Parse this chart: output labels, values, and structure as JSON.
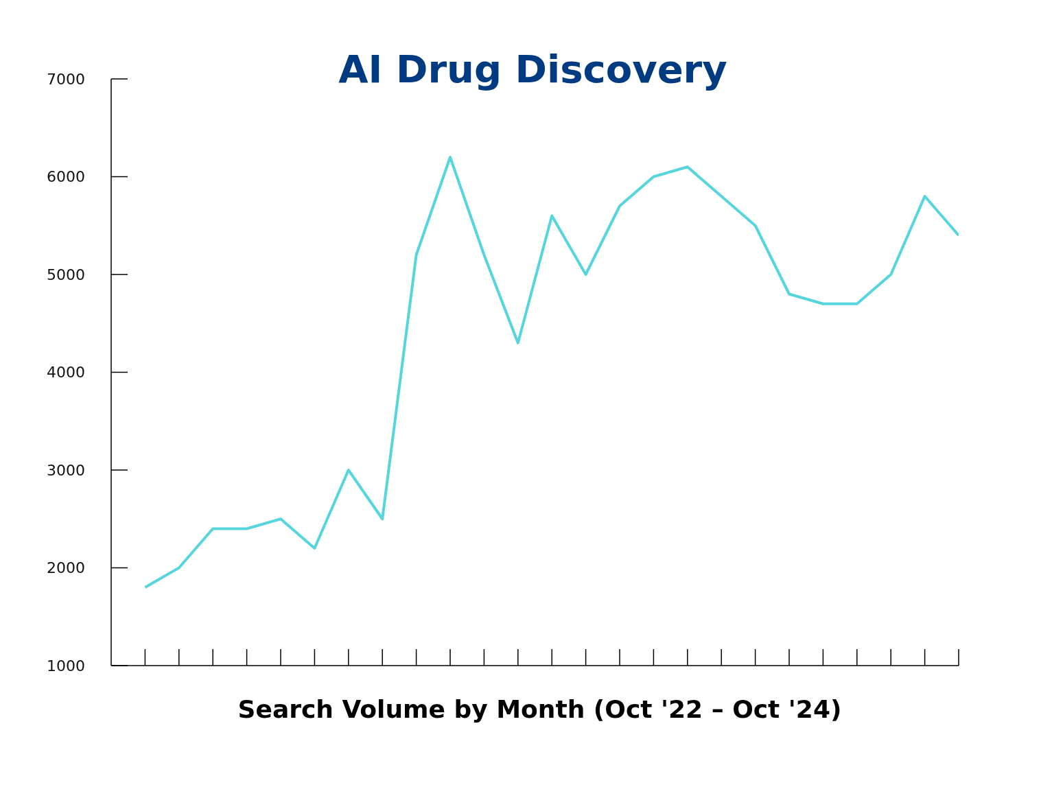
{
  "chart_data": {
    "type": "line",
    "title": "AI Drug Discovery",
    "xlabel": "Search Volume by Month (Oct '22 – Oct '24)",
    "categories": [
      null,
      null,
      null,
      null,
      null,
      null,
      null,
      null,
      null,
      null,
      null,
      null,
      null,
      null,
      null,
      null,
      null,
      null,
      null,
      null,
      null,
      null,
      null,
      null,
      null
    ],
    "series": [
      {
        "color": "#56d6dc",
        "values": [
          1800,
          2000,
          2400,
          2400,
          2500,
          2200,
          3000,
          2500,
          5200,
          6200,
          5200,
          4300,
          5600,
          5000,
          5700,
          6000,
          6100,
          5800,
          5500,
          4800,
          4700,
          4700,
          5000,
          5800,
          5400
        ]
      }
    ],
    "ylim": [
      1000,
      7000
    ],
    "yticks": [
      1000,
      2000,
      3000,
      4000,
      5000,
      6000,
      7000
    ]
  }
}
